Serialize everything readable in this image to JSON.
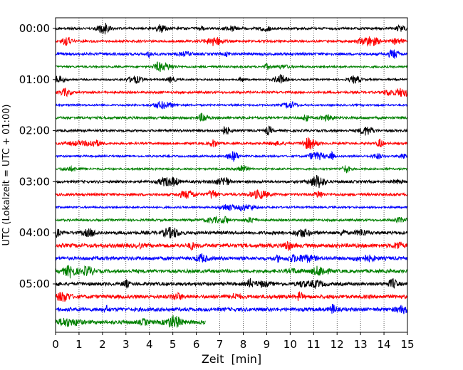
{
  "chart_data": {
    "type": "line",
    "title": "",
    "xlabel": "Zeit  [min]",
    "ylabel": "UTC (Lokalzeit = UTC + 01:00)",
    "xlim": [
      0,
      15
    ],
    "x_ticks": [
      "0",
      "1",
      "2",
      "3",
      "4",
      "5",
      "6",
      "7",
      "8",
      "9",
      "10",
      "11",
      "12",
      "13",
      "14",
      "15"
    ],
    "y_tick_labels": [
      "00:00",
      "01:00",
      "02:00",
      "03:00",
      "04:00",
      "05:00"
    ],
    "trace_interval_min": 15,
    "grid": "vertical dotted",
    "color_cycle": [
      "#000000",
      "#ff0000",
      "#0000ff",
      "#008000"
    ],
    "traces": [
      {
        "start": "00:00",
        "end_min": 15
      },
      {
        "start": "00:15",
        "end_min": 15
      },
      {
        "start": "00:30",
        "end_min": 15
      },
      {
        "start": "00:45",
        "end_min": 15
      },
      {
        "start": "01:00",
        "end_min": 15
      },
      {
        "start": "01:15",
        "end_min": 15
      },
      {
        "start": "01:30",
        "end_min": 15
      },
      {
        "start": "01:45",
        "end_min": 15
      },
      {
        "start": "02:00",
        "end_min": 15
      },
      {
        "start": "02:15",
        "end_min": 15
      },
      {
        "start": "02:30",
        "end_min": 15
      },
      {
        "start": "02:45",
        "end_min": 15
      },
      {
        "start": "03:00",
        "end_min": 15
      },
      {
        "start": "03:15",
        "end_min": 15
      },
      {
        "start": "03:30",
        "end_min": 15
      },
      {
        "start": "03:45",
        "end_min": 15
      },
      {
        "start": "04:00",
        "end_min": 15
      },
      {
        "start": "04:15",
        "end_min": 15
      },
      {
        "start": "04:30",
        "end_min": 15
      },
      {
        "start": "04:45",
        "end_min": 15
      },
      {
        "start": "05:00",
        "end_min": 15
      },
      {
        "start": "05:15",
        "end_min": 15
      },
      {
        "start": "05:30",
        "end_min": 15
      },
      {
        "start": "05:45",
        "end_min": 6.4
      }
    ]
  }
}
